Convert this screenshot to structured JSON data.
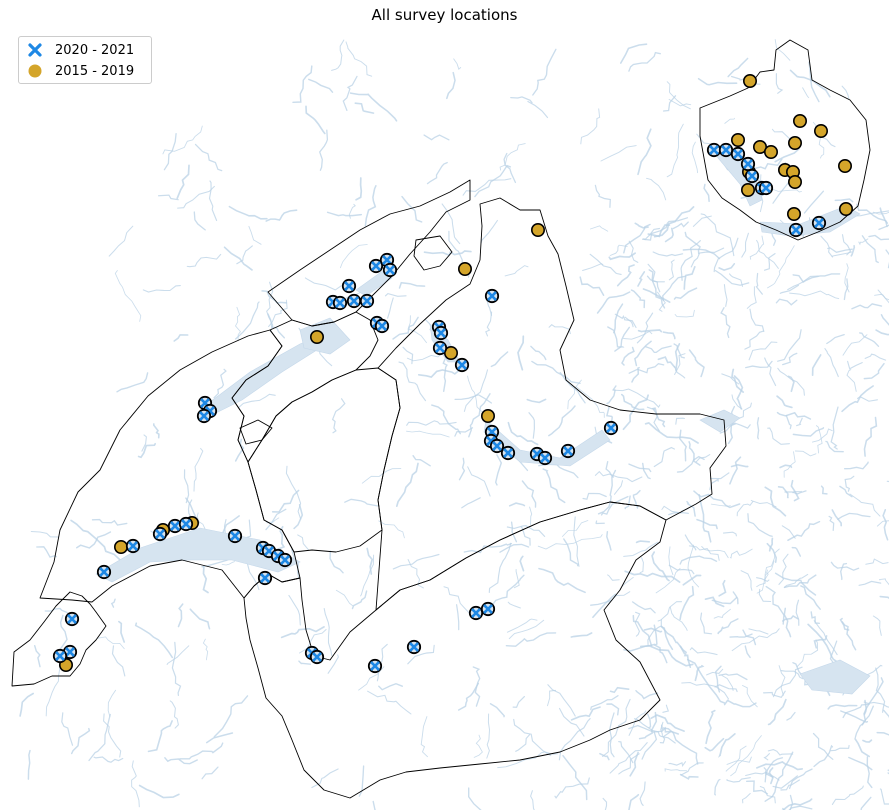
{
  "title": "All survey locations",
  "legend": [
    {
      "label": "2020 - 2021",
      "marker": "x-marker",
      "color": "#1e88e5"
    },
    {
      "label": "2015 - 2019",
      "marker": "circle-marker",
      "color": "#d4a52a"
    }
  ],
  "colors": {
    "river": "#b9d2e6",
    "lake": "#d6e4f0",
    "border": "#000000",
    "marker_outline": "#000000",
    "recent": "#1e88e5",
    "older": "#d4a52a",
    "marker_fill_under_x": "#d6e4f0"
  }
}
